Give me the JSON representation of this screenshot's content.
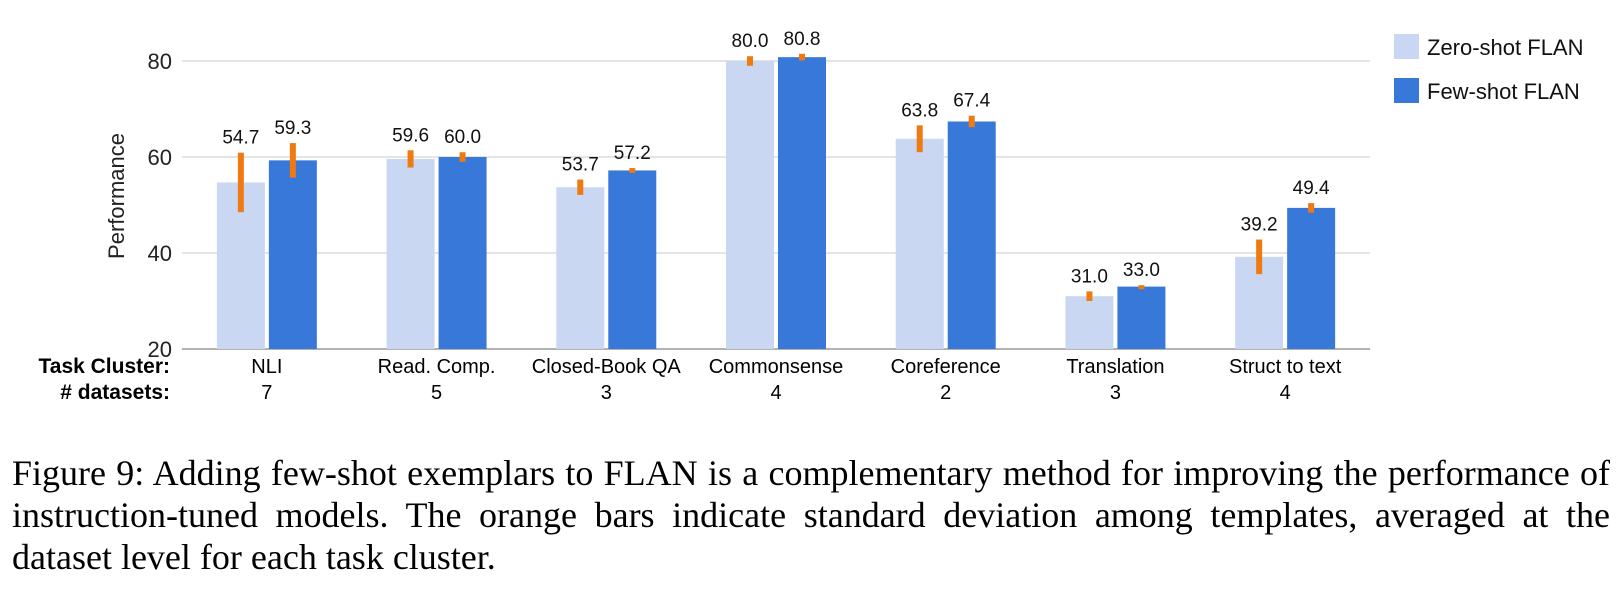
{
  "chart_data": {
    "type": "bar",
    "ylabel": "Performance",
    "ylim": [
      20,
      84
    ],
    "yticks": [
      20,
      40,
      60,
      80
    ],
    "grid": true,
    "legend_position": "top-right",
    "row_labels": {
      "cluster": "Task Cluster:",
      "datasets": "# datasets:"
    },
    "categories": [
      "NLI",
      "Read. Comp.",
      "Closed-Book QA",
      "Commonsense",
      "Coreference",
      "Translation",
      "Struct to text"
    ],
    "dataset_counts": [
      "7",
      "5",
      "3",
      "4",
      "2",
      "3",
      "4"
    ],
    "series": [
      {
        "name": "Zero-shot FLAN",
        "color": "#c9d7f3",
        "values": [
          54.7,
          59.6,
          53.7,
          80.0,
          63.8,
          31.0,
          39.2
        ],
        "labels": [
          "54.7",
          "59.6",
          "53.7",
          "80.0",
          "63.8",
          "31.0",
          "39.2"
        ],
        "std": [
          6.2,
          1.8,
          1.6,
          1.0,
          2.8,
          1.0,
          3.6
        ]
      },
      {
        "name": "Few-shot FLAN",
        "color": "#3878d8",
        "values": [
          59.3,
          60.0,
          57.2,
          80.8,
          67.4,
          33.0,
          49.4
        ],
        "labels": [
          "59.3",
          "60.0",
          "57.2",
          "80.8",
          "67.4",
          "33.0",
          "49.4"
        ],
        "std": [
          3.6,
          1.0,
          0.5,
          0.7,
          1.2,
          0.3,
          1.0
        ]
      }
    ],
    "error_bar_color": "#f07a12"
  },
  "caption": "Figure 9:   Adding few-shot exemplars to FLAN is a complementary method for improving the performance of instruction-tuned models.  The orange bars indicate standard deviation among templates, averaged at the dataset level for each task cluster."
}
